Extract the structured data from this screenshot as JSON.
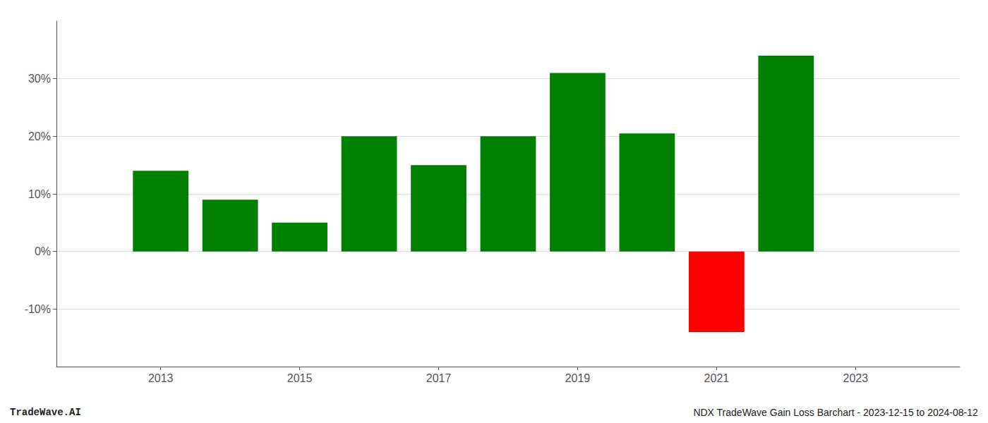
{
  "chart_data": {
    "type": "bar",
    "x": [
      2013,
      2014,
      2015,
      2016,
      2017,
      2018,
      2019,
      2020,
      2021,
      2022
    ],
    "values": [
      14.0,
      9.0,
      5.0,
      20.0,
      15.0,
      20.0,
      31.0,
      20.5,
      -14.0,
      34.0
    ],
    "colors": [
      "#008000",
      "#008000",
      "#008000",
      "#008000",
      "#008000",
      "#008000",
      "#008000",
      "#008000",
      "#ff0000",
      "#008000"
    ],
    "xlim": [
      2011.5,
      2024.5
    ],
    "xticks": [
      2013,
      2015,
      2017,
      2019,
      2021,
      2023
    ],
    "ylim": [
      -20,
      40
    ],
    "yticks": [
      {
        "value": -10,
        "label": "-10%"
      },
      {
        "value": 0,
        "label": "0%"
      },
      {
        "value": 10,
        "label": "10%"
      },
      {
        "value": 20,
        "label": "20%"
      },
      {
        "value": 30,
        "label": "30%"
      }
    ],
    "grid": true,
    "annotations": [
      "TradeWave.AI",
      "NDX TradeWave Gain Loss Barchart - 2023-12-15 to 2024-08-12"
    ]
  }
}
